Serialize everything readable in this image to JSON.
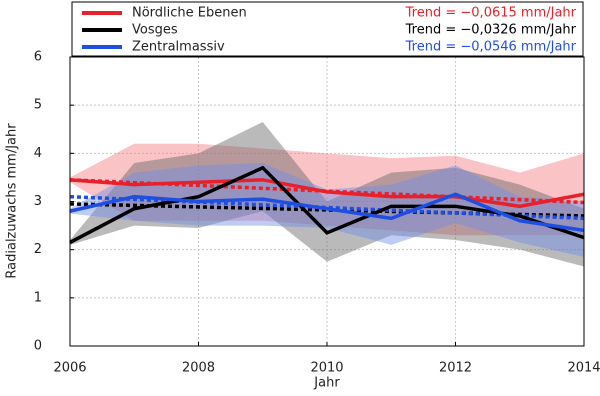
{
  "chart_data": {
    "type": "line",
    "x": [
      2006,
      2007,
      2008,
      2009,
      2010,
      2011,
      2012,
      2013,
      2014
    ],
    "xlim": [
      2006,
      2014
    ],
    "xticks": [
      2006,
      2008,
      2010,
      2012,
      2014
    ],
    "ylim": [
      0,
      6
    ],
    "yticks": [
      0,
      1,
      2,
      3,
      4,
      5,
      6
    ],
    "xlabel": "Jahr",
    "ylabel": "Radialzuwachs mm/Jahr",
    "grid": true,
    "trend_x": [
      2006,
      2014
    ],
    "series": [
      {
        "name": "Nördliche Ebenen",
        "color": "#e8202a",
        "band_color": "#f47a80",
        "trend_label": "Trend = −0,0615 mm/Jahr",
        "values": [
          3.45,
          3.35,
          3.4,
          3.45,
          3.2,
          3.1,
          3.1,
          2.9,
          3.15
        ],
        "upper": [
          3.5,
          4.2,
          4.2,
          4.1,
          4.0,
          3.9,
          3.95,
          3.6,
          4.0
        ],
        "lower": [
          3.4,
          2.6,
          2.6,
          2.6,
          2.5,
          2.4,
          2.3,
          2.3,
          2.3
        ],
        "trend_values": [
          3.45,
          2.98
        ]
      },
      {
        "name": "Vosges",
        "color": "#000000",
        "band_color": "#666666",
        "trend_label": "Trend = −0,0326 mm/Jahr",
        "values": [
          2.15,
          2.85,
          3.1,
          3.7,
          2.35,
          2.9,
          2.9,
          2.7,
          2.25
        ],
        "upper": [
          2.2,
          3.8,
          4.0,
          4.65,
          3.0,
          3.6,
          3.7,
          3.35,
          2.85
        ],
        "lower": [
          2.1,
          2.5,
          2.45,
          2.8,
          1.75,
          2.3,
          2.2,
          2.0,
          1.65
        ],
        "trend_values": [
          2.95,
          2.7
        ]
      },
      {
        "name": "Zentralmassiv",
        "color": "#1f4fe0",
        "band_color": "#6f8fe8",
        "trend_label": "Trend = −0,0546 mm/Jahr",
        "values": [
          2.8,
          3.1,
          3.0,
          3.05,
          2.85,
          2.65,
          3.15,
          2.6,
          2.4
        ],
        "upper": [
          2.85,
          3.6,
          3.75,
          3.8,
          3.25,
          3.35,
          3.75,
          3.1,
          3.0
        ],
        "lower": [
          2.75,
          2.6,
          2.5,
          2.5,
          2.45,
          2.1,
          2.55,
          2.15,
          1.85
        ],
        "trend_values": [
          3.1,
          2.65
        ]
      }
    ]
  }
}
